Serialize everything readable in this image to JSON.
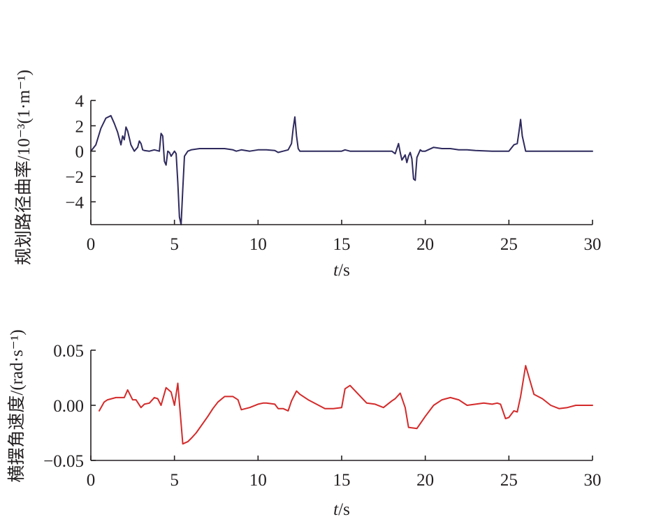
{
  "chart_data": [
    {
      "type": "line",
      "ylabel": "规划路径曲率/10⁻³(1·m⁻¹)",
      "xlabel_var": "t",
      "xlabel_unit": "/s",
      "xlim": [
        0,
        30
      ],
      "ylim": [
        -5.8,
        4
      ],
      "xticks": [
        "0",
        "5",
        "10",
        "15",
        "20",
        "25",
        "30"
      ],
      "yticks": [
        {
          "v": 4,
          "t": "4"
        },
        {
          "v": 2,
          "t": "2"
        },
        {
          "v": 0,
          "t": "0"
        },
        {
          "v": -2,
          "t": "−2"
        },
        {
          "v": -4,
          "t": "−4"
        }
      ],
      "grid": false,
      "color": "#2e2a5e",
      "series": [
        {
          "x": [
            0,
            0.3,
            0.6,
            0.9,
            1.2,
            1.4,
            1.6,
            1.8,
            1.9,
            2.0,
            2.1,
            2.2,
            2.4,
            2.6,
            2.8,
            2.9,
            3.0,
            3.1,
            3.2,
            3.5,
            3.8,
            4.1,
            4.2,
            4.3,
            4.4,
            4.5,
            4.6,
            4.7,
            4.8,
            5.0,
            5.1,
            5.2,
            5.3,
            5.4,
            5.5,
            5.6,
            5.8,
            6.0,
            6.5,
            7.0,
            8.0,
            8.5,
            8.7,
            9.0,
            9.5,
            10.0,
            10.5,
            11.0,
            11.2,
            11.5,
            11.8,
            12.0,
            12.1,
            12.2,
            12.3,
            12.4,
            12.5,
            12.6,
            13.0,
            14.0,
            15.0,
            15.2,
            15.5,
            16.0,
            17.0,
            18.0,
            18.2,
            18.4,
            18.5,
            18.6,
            18.8,
            18.9,
            19.0,
            19.1,
            19.2,
            19.3,
            19.4,
            19.5,
            19.6,
            19.7,
            19.8,
            20.0,
            20.5,
            21.0,
            21.5,
            22.0,
            22.5,
            23.0,
            24.0,
            24.5,
            25.0,
            25.3,
            25.5,
            25.6,
            25.7,
            25.8,
            26.0,
            27.0,
            28.0,
            29.0,
            30.0
          ],
          "y": [
            0,
            0.5,
            1.8,
            2.6,
            2.8,
            2.2,
            1.5,
            0.5,
            1.2,
            0.9,
            1.9,
            1.6,
            0.5,
            0,
            0.3,
            0.8,
            0.6,
            0.1,
            0.05,
            0,
            0.1,
            0,
            1.4,
            1.2,
            -0.8,
            -1.1,
            0,
            -0.1,
            -0.4,
            0,
            -0.2,
            -2.5,
            -5.2,
            -5.8,
            -3,
            -0.4,
            0,
            0.1,
            0.2,
            0.2,
            0.2,
            0.1,
            0,
            0.1,
            0,
            0.1,
            0.1,
            0.05,
            -0.1,
            0,
            0.1,
            0.6,
            1.8,
            2.7,
            1.2,
            0.2,
            0,
            0,
            0,
            0,
            0,
            0.1,
            0,
            0,
            0,
            0,
            -0.2,
            0.6,
            -0.1,
            -0.7,
            -0.3,
            -0.9,
            -0.4,
            -0.1,
            -0.6,
            -2.2,
            -2.3,
            -0.5,
            -0.2,
            0.1,
            0,
            0,
            0.3,
            0.2,
            0.2,
            0.1,
            0.1,
            0.05,
            0,
            0,
            0,
            0.5,
            0.6,
            1.5,
            2.5,
            1.2,
            0,
            0,
            0,
            0,
            0
          ]
        }
      ]
    },
    {
      "type": "line",
      "ylabel": "横摆角速度/(rad·s⁻¹)",
      "xlabel_var": "t",
      "xlabel_unit": "/s",
      "xlim": [
        0,
        30
      ],
      "ylim": [
        -0.05,
        0.05
      ],
      "xticks": [
        "0",
        "5",
        "10",
        "15",
        "20",
        "25",
        "30"
      ],
      "yticks": [
        {
          "v": 0.05,
          "t": "0.05"
        },
        {
          "v": 0.0,
          "t": "0.00"
        },
        {
          "v": -0.05,
          "t": "−0.05"
        }
      ],
      "grid": false,
      "color": "#d42a2a",
      "series": [
        {
          "x": [
            0.5,
            0.8,
            1.0,
            1.5,
            2.0,
            2.2,
            2.5,
            2.7,
            3.0,
            3.2,
            3.5,
            3.8,
            4.0,
            4.2,
            4.5,
            4.8,
            5.0,
            5.2,
            5.5,
            5.8,
            6.0,
            6.3,
            7.0,
            7.3,
            7.6,
            8.0,
            8.5,
            8.8,
            9.0,
            9.5,
            10.0,
            10.3,
            10.5,
            11.0,
            11.2,
            11.5,
            11.8,
            12.0,
            12.3,
            12.5,
            13.0,
            14.0,
            14.5,
            15.0,
            15.2,
            15.5,
            16.0,
            16.5,
            17.0,
            17.5,
            18.0,
            18.2,
            18.5,
            18.8,
            19.0,
            19.5,
            20.0,
            20.5,
            21.0,
            21.5,
            22.0,
            22.5,
            23.0,
            23.5,
            24.0,
            24.3,
            24.5,
            24.8,
            25.0,
            25.3,
            25.5,
            25.7,
            26.0,
            26.5,
            27.0,
            27.5,
            28.0,
            28.5,
            29.0,
            29.5,
            30.0
          ],
          "y": [
            -0.005,
            0.003,
            0.005,
            0.007,
            0.007,
            0.014,
            0.005,
            0.005,
            -0.002,
            0.001,
            0.002,
            0.007,
            0.006,
            0.0,
            0.016,
            0.012,
            0.0,
            0.02,
            -0.035,
            -0.033,
            -0.03,
            -0.025,
            -0.01,
            -0.003,
            0.003,
            0.008,
            0.008,
            0.005,
            -0.004,
            -0.002,
            0.001,
            0.002,
            0.002,
            0.001,
            -0.003,
            -0.003,
            -0.005,
            0.004,
            0.013,
            0.01,
            0.005,
            -0.003,
            -0.003,
            -0.002,
            0.015,
            0.018,
            0.01,
            0.002,
            0.001,
            -0.002,
            0.004,
            0.006,
            0.011,
            -0.002,
            -0.02,
            -0.021,
            -0.01,
            0.0,
            0.005,
            0.007,
            0.005,
            0.0,
            0.001,
            0.002,
            0.001,
            0.002,
            0.001,
            -0.012,
            -0.011,
            -0.005,
            -0.006,
            0.008,
            0.036,
            0.01,
            0.006,
            0.0,
            -0.003,
            -0.002,
            0.0,
            0.0,
            0.0
          ]
        }
      ]
    }
  ]
}
